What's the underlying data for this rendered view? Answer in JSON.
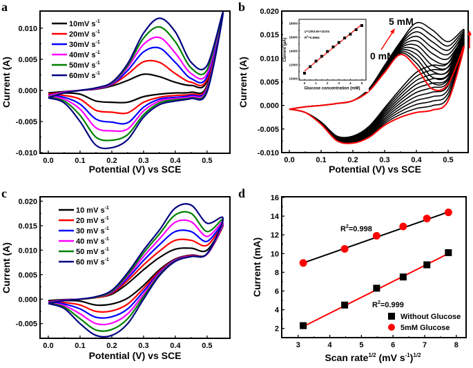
{
  "colors": {
    "black": "#000000",
    "red": "#ff0000",
    "blue": "#0000ff",
    "magenta": "#ff00ff",
    "green": "#008000",
    "navy": "#000080"
  },
  "chart_data": [
    {
      "panel": "a",
      "type": "line",
      "xlabel": "Potential (V) vs SCE",
      "ylabel": "Current (A)",
      "xlim": [
        -0.026,
        0.572
      ],
      "ylim": [
        -0.0101,
        0.01275
      ],
      "xticks": [
        "0.0",
        "0.1",
        "0.2",
        "0.3",
        "0.4",
        "0.5"
      ],
      "yticks": [
        "-0.010",
        "-0.005",
        "0.000",
        "0.005",
        "0.010"
      ],
      "E": [
        0,
        0.05,
        0.1,
        0.15,
        0.2,
        0.25,
        0.3,
        0.35,
        0.4,
        0.45,
        0.5,
        0.55
      ],
      "series": [
        {
          "name": "10mV s",
          "sup": "-1",
          "color": "#000000",
          "forward": [
            -0.0004,
            -0.0002,
            0,
            0.0002,
            0.0007,
            0.0016,
            0.0026,
            0.0022,
            0.0013,
            0.0008,
            0.0015,
            0.0125
          ],
          "reverse": [
            -0.0004,
            -0.0004,
            -0.0006,
            -0.0017,
            -0.0019,
            -0.0019,
            -0.001,
            -0.0006,
            -0.0004,
            -0.0003,
            0.0008,
            0.0125
          ]
        },
        {
          "name": "20mV s",
          "sup": "-1",
          "color": "#ff0000",
          "forward": [
            -0.0006,
            -0.0003,
            0,
            0.0003,
            0.0009,
            0.0026,
            0.0046,
            0.0045,
            0.0027,
            0.0013,
            0.0018,
            0.0125
          ],
          "reverse": [
            -0.0006,
            -0.0008,
            -0.0014,
            -0.0032,
            -0.0035,
            -0.0036,
            -0.0019,
            -0.0011,
            -0.0008,
            -0.0006,
            0.0006,
            0.0125
          ]
        },
        {
          "name": "30mV s",
          "sup": "-1",
          "color": "#0000ff",
          "forward": [
            -0.0008,
            -0.0003,
            0,
            0.0003,
            0.001,
            0.0032,
            0.0062,
            0.0068,
            0.0045,
            0.0019,
            0.0022,
            0.0125
          ],
          "reverse": [
            -0.0008,
            -0.0011,
            -0.0022,
            -0.0046,
            -0.0051,
            -0.0052,
            -0.0027,
            -0.0014,
            -0.0011,
            -0.0008,
            0.0004,
            0.0125
          ]
        },
        {
          "name": "40mV s",
          "sup": "-1",
          "color": "#ff00ff",
          "forward": [
            -0.0009,
            -0.0003,
            0,
            0.0003,
            0.0011,
            0.0037,
            0.0074,
            0.0085,
            0.006,
            0.0027,
            0.0027,
            0.0125
          ],
          "reverse": [
            -0.0009,
            -0.0014,
            -0.003,
            -0.006,
            -0.0065,
            -0.0062,
            -0.0033,
            -0.0017,
            -0.0013,
            -0.001,
            0.0002,
            0.0125
          ]
        },
        {
          "name": "50mV s",
          "sup": "-1",
          "color": "#008000",
          "forward": [
            -0.0011,
            -0.0004,
            0,
            0.0004,
            0.0012,
            0.004,
            0.0084,
            0.0102,
            0.0078,
            0.0036,
            0.0033,
            0.0125
          ],
          "reverse": [
            -0.0011,
            -0.0017,
            -0.004,
            -0.0075,
            -0.008,
            -0.0071,
            -0.0039,
            -0.002,
            -0.0015,
            -0.0012,
            0,
            0.0125
          ]
        },
        {
          "name": "60mV s",
          "sup": "-1",
          "color": "#000080",
          "forward": [
            -0.0012,
            -0.0004,
            0,
            0.0004,
            0.0013,
            0.0043,
            0.0092,
            0.0116,
            0.0094,
            0.0045,
            0.004,
            0.0125
          ],
          "reverse": [
            -0.0012,
            -0.002,
            -0.005,
            -0.0088,
            -0.0092,
            -0.0079,
            -0.0043,
            -0.0023,
            -0.0017,
            -0.0013,
            -0.0002,
            0.0125
          ]
        }
      ]
    },
    {
      "panel": "b",
      "type": "line",
      "xlabel": "Potential (V) vs SCE",
      "ylabel": "Current (A)",
      "xlim": [
        -0.024,
        0.563
      ],
      "ylim": [
        -0.01,
        0.02
      ],
      "xticks": [
        "0.0",
        "0.1",
        "0.2",
        "0.3",
        "0.4",
        "0.5"
      ],
      "yticks": [
        "-0.010",
        "-0.005",
        "0.000",
        "0.005",
        "0.010",
        "0.015",
        "0.020"
      ],
      "E": [
        0,
        0.05,
        0.1,
        0.15,
        0.2,
        0.25,
        0.3,
        0.35,
        0.4,
        0.45,
        0.5,
        0.55
      ],
      "annotations": {
        "high": "5 mM",
        "low": "0 mM"
      },
      "intermediate_curves": 9,
      "series": [
        {
          "name": "0 mM",
          "color": "#ff0000",
          "forward": [
            -0.0008,
            -0.0003,
            0,
            0.0004,
            0.001,
            0.003,
            0.007,
            0.0108,
            0.008,
            0.0035,
            0.0045,
            0.0125
          ],
          "reverse": [
            -0.0008,
            -0.0015,
            -0.004,
            -0.0075,
            -0.008,
            -0.0068,
            -0.0042,
            -0.0025,
            -0.0015,
            -0.001,
            0.001,
            0.0125
          ]
        },
        {
          "name": "5 mM",
          "color": "#000000",
          "forward": [
            -0.0008,
            -0.0003,
            0,
            0.0004,
            0.001,
            0.0035,
            0.0085,
            0.0135,
            0.0175,
            0.016,
            0.0135,
            0.016
          ],
          "reverse": [
            -0.0008,
            -0.0015,
            -0.0035,
            -0.0065,
            -0.0065,
            -0.0045,
            -0.0005,
            0.0035,
            0.007,
            0.0085,
            0.009,
            0.016
          ]
        }
      ],
      "inset": {
        "type": "scatter",
        "xlabel": "Glucose concentration (mM)",
        "ylabel": "Current (µA)",
        "xlim": [
          -0.48,
          5.36
        ],
        "ylim": [
          9800,
          18600
        ],
        "xticks": [
          0,
          1,
          2,
          3,
          4,
          5
        ],
        "yticks": [
          10000,
          12000,
          14000,
          16000,
          18000
        ],
        "x": [
          0,
          0.5,
          1,
          1.5,
          2,
          2.5,
          3,
          3.5,
          4,
          4.5,
          5
        ],
        "y": [
          10800,
          11750,
          12550,
          13250,
          13950,
          14600,
          15250,
          15900,
          16450,
          17100,
          17700
        ],
        "fit": {
          "slope": 1353.8,
          "intercept": 11104
        },
        "equation": "y=1353.8x+11104",
        "r2_label": "R",
        "r2_sup": "2",
        "r2_value": "=0.9964"
      }
    },
    {
      "panel": "c",
      "type": "line",
      "xlabel": "Potential (V) vs SCE",
      "ylabel": "Current (A)",
      "xlim": [
        -0.026,
        0.572
      ],
      "ylim": [
        -0.008,
        0.0209
      ],
      "xticks": [
        "0.0",
        "0.1",
        "0.2",
        "0.3",
        "0.4",
        "0.5"
      ],
      "yticks": [
        "-0.005",
        "0.000",
        "0.005",
        "0.010",
        "0.015",
        "0.020"
      ],
      "E": [
        0,
        0.05,
        0.1,
        0.15,
        0.2,
        0.25,
        0.3,
        0.35,
        0.4,
        0.45,
        0.5,
        0.55
      ],
      "series": [
        {
          "name": "10 mV s",
          "sup": "-1",
          "color": "#000000",
          "forward": [
            -0.0003,
            -0.0001,
            0,
            0.0003,
            0.001,
            0.0032,
            0.006,
            0.0085,
            0.0102,
            0.0104,
            0.01,
            0.015
          ],
          "reverse": [
            -0.0003,
            -0.0003,
            -0.0004,
            -0.0012,
            -0.001,
            0.0002,
            0.0028,
            0.006,
            0.0082,
            0.009,
            0.0092,
            0.015
          ]
        },
        {
          "name": "20 mV s",
          "sup": "-1",
          "color": "#ff0000",
          "forward": [
            -0.0005,
            -0.0002,
            0,
            0.0003,
            0.0012,
            0.0038,
            0.007,
            0.0098,
            0.012,
            0.012,
            0.011,
            0.0152
          ],
          "reverse": [
            -0.0005,
            -0.0007,
            -0.0012,
            -0.0025,
            -0.0024,
            -0.001,
            0.0022,
            0.0057,
            0.0081,
            0.0089,
            0.0092,
            0.0152
          ]
        },
        {
          "name": "30 mV s",
          "sup": "-1",
          "color": "#0000ff",
          "forward": [
            -0.0006,
            -0.0002,
            0,
            0.0004,
            0.0014,
            0.0043,
            0.0079,
            0.0111,
            0.0138,
            0.0138,
            0.0118,
            0.0155
          ],
          "reverse": [
            -0.0006,
            -0.001,
            -0.002,
            -0.0037,
            -0.0036,
            -0.002,
            0.0016,
            0.0054,
            0.008,
            0.0088,
            0.0092,
            0.0155
          ]
        },
        {
          "name": "40 mV s",
          "sup": "-1",
          "color": "#ff00ff",
          "forward": [
            -0.0007,
            -0.0002,
            0,
            0.0004,
            0.0015,
            0.0047,
            0.0087,
            0.0123,
            0.0157,
            0.0158,
            0.0128,
            0.0158
          ],
          "reverse": [
            -0.0007,
            -0.0013,
            -0.003,
            -0.005,
            -0.0049,
            -0.003,
            0.001,
            0.0052,
            0.0079,
            0.0088,
            0.0092,
            0.0158
          ]
        },
        {
          "name": "50 mV s",
          "sup": "-1",
          "color": "#008000",
          "forward": [
            -0.0008,
            -0.0003,
            0,
            0.0004,
            0.0016,
            0.005,
            0.0094,
            0.0133,
            0.0172,
            0.0175,
            0.0138,
            0.0162
          ],
          "reverse": [
            -0.0008,
            -0.0016,
            -0.004,
            -0.0063,
            -0.0062,
            -0.004,
            0.0005,
            0.005,
            0.0078,
            0.0087,
            0.0093,
            0.0162
          ]
        },
        {
          "name": "60 mV s",
          "sup": "-1",
          "color": "#000080",
          "forward": [
            -0.0009,
            -0.0003,
            0,
            0.0005,
            0.0018,
            0.0054,
            0.01,
            0.0141,
            0.0186,
            0.0192,
            0.0155,
            0.0165
          ],
          "reverse": [
            -0.0009,
            -0.0019,
            -0.005,
            -0.0074,
            -0.0074,
            -0.005,
            0,
            0.0048,
            0.0077,
            0.0087,
            0.0093,
            0.0165
          ]
        }
      ]
    },
    {
      "panel": "d",
      "type": "scatter",
      "xlabel": "Scan rate",
      "xlabel_sup": "1/2",
      "xlabel_unit": " (mV s",
      "xlabel_unit_sup": "-1",
      "xlabel_close": ")",
      "xlabel_close_sup": "1/2",
      "ylabel": "Current (mA)",
      "xlim": [
        2.48,
        8.31
      ],
      "ylim": [
        1.02,
        16.07
      ],
      "xticks": [
        3,
        4,
        5,
        6,
        7,
        8
      ],
      "yticks": [
        2,
        4,
        6,
        8,
        10,
        12,
        14,
        16
      ],
      "x": [
        3.16,
        4.47,
        5.48,
        6.32,
        7.07,
        7.75
      ],
      "series": [
        {
          "name": "Without Glucose",
          "marker": "square",
          "color": "#000000",
          "line_color": "#ff0000",
          "y": [
            2.3,
            4.5,
            6.3,
            7.5,
            8.8,
            10.1
          ],
          "fit_ends": [
            2.2,
            10.0
          ],
          "r2_label": "R",
          "r2_sup": "2",
          "r2_value": "=0.999"
        },
        {
          "name": "5mM Glucose",
          "marker": "circle",
          "color": "#ff0000",
          "line_color": "#000000",
          "y": [
            9.0,
            10.5,
            11.9,
            12.9,
            13.75,
            14.4
          ],
          "fit_ends": [
            9.0,
            14.45
          ],
          "r2_label": "R",
          "r2_sup": "2",
          "r2_value": "=0.998"
        }
      ]
    }
  ]
}
